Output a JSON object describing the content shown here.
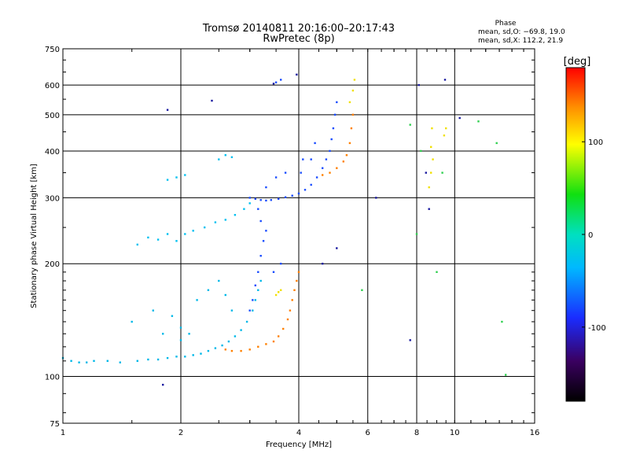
{
  "chart_data": {
    "type": "scatter",
    "title": "Tromsø 20140811 20:16:00–20:17:43",
    "subtitle": "RwPretec (8p)",
    "xlabel": "Frequency [MHz]",
    "ylabel": "Stationary phase Virtual Height [km]",
    "x_scale": "log",
    "y_scale": "log",
    "xlim": [
      1,
      16
    ],
    "ylim": [
      75,
      750
    ],
    "x_ticks": [
      1,
      2,
      4,
      6,
      8,
      10,
      16
    ],
    "x_tick_labels": [
      "1",
      "2",
      "4",
      "6",
      "8",
      "10",
      "16"
    ],
    "y_ticks": [
      75,
      100,
      200,
      300,
      400,
      500,
      600,
      750
    ],
    "y_tick_labels": [
      "75",
      "100",
      "200",
      "300",
      "400",
      "500",
      "600",
      "750"
    ],
    "grid": true,
    "phase_header": "Phase",
    "phase_stats": [
      "mean, sd,O: −69.8, 19.0",
      "mean, sd,X: 112.2, 21.9"
    ],
    "colorbar": {
      "label": "[deg]",
      "range": [
        -180,
        180
      ],
      "ticks": [
        100,
        0,
        -100
      ],
      "tick_labels": [
        "100",
        "0",
        "-100"
      ]
    },
    "series": [
      {
        "trace": "O-mode E/F1 (cyan)",
        "phase": -70,
        "color": "#00b8e8",
        "points": [
          [
            1.0,
            112
          ],
          [
            1.05,
            110
          ],
          [
            1.1,
            109
          ],
          [
            1.15,
            109
          ],
          [
            1.2,
            110
          ],
          [
            1.3,
            110
          ],
          [
            1.4,
            109
          ],
          [
            1.55,
            110
          ],
          [
            1.65,
            111
          ],
          [
            1.75,
            111
          ],
          [
            1.85,
            112
          ],
          [
            1.95,
            113
          ],
          [
            2.05,
            113
          ],
          [
            2.15,
            114
          ],
          [
            2.25,
            115
          ],
          [
            2.35,
            117
          ],
          [
            2.45,
            119
          ],
          [
            2.55,
            121
          ],
          [
            2.65,
            124
          ],
          [
            2.75,
            128
          ],
          [
            2.85,
            133
          ],
          [
            2.95,
            140
          ],
          [
            3.05,
            150
          ],
          [
            3.1,
            160
          ],
          [
            3.15,
            170
          ],
          [
            3.2,
            180
          ],
          [
            1.5,
            140
          ],
          [
            1.7,
            150
          ],
          [
            1.9,
            145
          ],
          [
            2.0,
            135
          ],
          [
            2.2,
            160
          ],
          [
            2.35,
            170
          ],
          [
            2.5,
            180
          ],
          [
            2.6,
            165
          ],
          [
            2.7,
            150
          ],
          [
            2.0,
            125
          ],
          [
            2.1,
            130
          ],
          [
            1.8,
            130
          ]
        ]
      },
      {
        "trace": "O-mode F2 lower (cyan)",
        "phase": -70,
        "color": "#00c0f0",
        "points": [
          [
            1.55,
            225
          ],
          [
            1.65,
            235
          ],
          [
            1.75,
            232
          ],
          [
            1.85,
            240
          ],
          [
            1.95,
            230
          ],
          [
            2.05,
            240
          ],
          [
            2.15,
            245
          ],
          [
            2.3,
            250
          ],
          [
            2.45,
            258
          ],
          [
            2.6,
            262
          ],
          [
            2.75,
            270
          ],
          [
            2.9,
            280
          ],
          [
            3.0,
            290
          ],
          [
            1.85,
            335
          ],
          [
            1.95,
            340
          ],
          [
            2.05,
            345
          ],
          [
            2.5,
            380
          ],
          [
            2.6,
            390
          ],
          [
            2.7,
            385
          ]
        ]
      },
      {
        "trace": "O-mode F2 (blue)",
        "phase": -100,
        "color": "#1a4cff",
        "points": [
          [
            3.0,
            300
          ],
          [
            3.1,
            298
          ],
          [
            3.2,
            296
          ],
          [
            3.3,
            295
          ],
          [
            3.4,
            296
          ],
          [
            3.55,
            298
          ],
          [
            3.7,
            301
          ],
          [
            3.85,
            304
          ],
          [
            4.0,
            308
          ],
          [
            4.15,
            315
          ],
          [
            4.3,
            325
          ],
          [
            4.45,
            340
          ],
          [
            4.6,
            360
          ],
          [
            4.7,
            380
          ],
          [
            4.8,
            400
          ],
          [
            4.85,
            430
          ],
          [
            4.9,
            460
          ],
          [
            4.95,
            500
          ],
          [
            5.0,
            540
          ],
          [
            3.0,
            150
          ],
          [
            3.05,
            160
          ],
          [
            3.1,
            175
          ],
          [
            3.15,
            190
          ],
          [
            3.2,
            210
          ],
          [
            3.25,
            230
          ],
          [
            3.3,
            245
          ],
          [
            3.2,
            260
          ],
          [
            3.15,
            280
          ],
          [
            3.3,
            320
          ],
          [
            3.5,
            340
          ],
          [
            3.7,
            350
          ],
          [
            4.05,
            350
          ],
          [
            4.1,
            380
          ],
          [
            4.3,
            380
          ],
          [
            4.4,
            420
          ],
          [
            3.5,
            610
          ],
          [
            3.6,
            620
          ],
          [
            3.45,
            190
          ],
          [
            3.6,
            200
          ]
        ]
      },
      {
        "trace": "X-mode F2 (orange)",
        "phase": 110,
        "color": "#ff8000",
        "points": [
          [
            2.6,
            118
          ],
          [
            2.7,
            117
          ],
          [
            2.85,
            117
          ],
          [
            3.0,
            118
          ],
          [
            3.15,
            120
          ],
          [
            3.3,
            122
          ],
          [
            3.45,
            124
          ],
          [
            3.55,
            128
          ],
          [
            3.65,
            134
          ],
          [
            3.75,
            142
          ],
          [
            3.8,
            150
          ],
          [
            3.85,
            160
          ],
          [
            3.9,
            170
          ],
          [
            3.95,
            180
          ],
          [
            4.0,
            190
          ],
          [
            4.6,
            345
          ],
          [
            4.8,
            350
          ],
          [
            5.0,
            360
          ],
          [
            5.2,
            375
          ],
          [
            5.3,
            390
          ],
          [
            5.4,
            420
          ],
          [
            5.45,
            460
          ],
          [
            5.5,
            500
          ]
        ]
      },
      {
        "trace": "X-mode (yellow)",
        "phase": 140,
        "color": "#f0e000",
        "points": [
          [
            3.5,
            165
          ],
          [
            3.55,
            168
          ],
          [
            3.6,
            170
          ],
          [
            5.4,
            540
          ],
          [
            5.5,
            580
          ],
          [
            5.55,
            620
          ],
          [
            8.6,
            320
          ],
          [
            8.7,
            350
          ],
          [
            8.8,
            380
          ],
          [
            8.7,
            410
          ],
          [
            8.75,
            460
          ],
          [
            9.4,
            440
          ],
          [
            9.5,
            460
          ]
        ]
      },
      {
        "trace": "scattered (dark blue)",
        "phase": -120,
        "color": "#1a1aa0",
        "points": [
          [
            1.8,
            95
          ],
          [
            1.85,
            515
          ],
          [
            2.4,
            545
          ],
          [
            3.45,
            605
          ],
          [
            3.95,
            640
          ],
          [
            4.6,
            200
          ],
          [
            7.7,
            125
          ],
          [
            8.1,
            600
          ],
          [
            8.45,
            350
          ],
          [
            8.6,
            280
          ],
          [
            9.45,
            620
          ],
          [
            10.3,
            490
          ],
          [
            5.0,
            220
          ],
          [
            6.3,
            300
          ]
        ]
      },
      {
        "trace": "scattered (other)",
        "phase": 30,
        "color": "#30d050",
        "points": [
          [
            8.2,
            400
          ],
          [
            9.0,
            190
          ],
          [
            9.3,
            350
          ],
          [
            11.5,
            480
          ],
          [
            12.8,
            420
          ],
          [
            13.2,
            140
          ],
          [
            13.5,
            101
          ],
          [
            8.0,
            240
          ],
          [
            7.7,
            470
          ],
          [
            5.8,
            170
          ]
        ]
      }
    ]
  }
}
